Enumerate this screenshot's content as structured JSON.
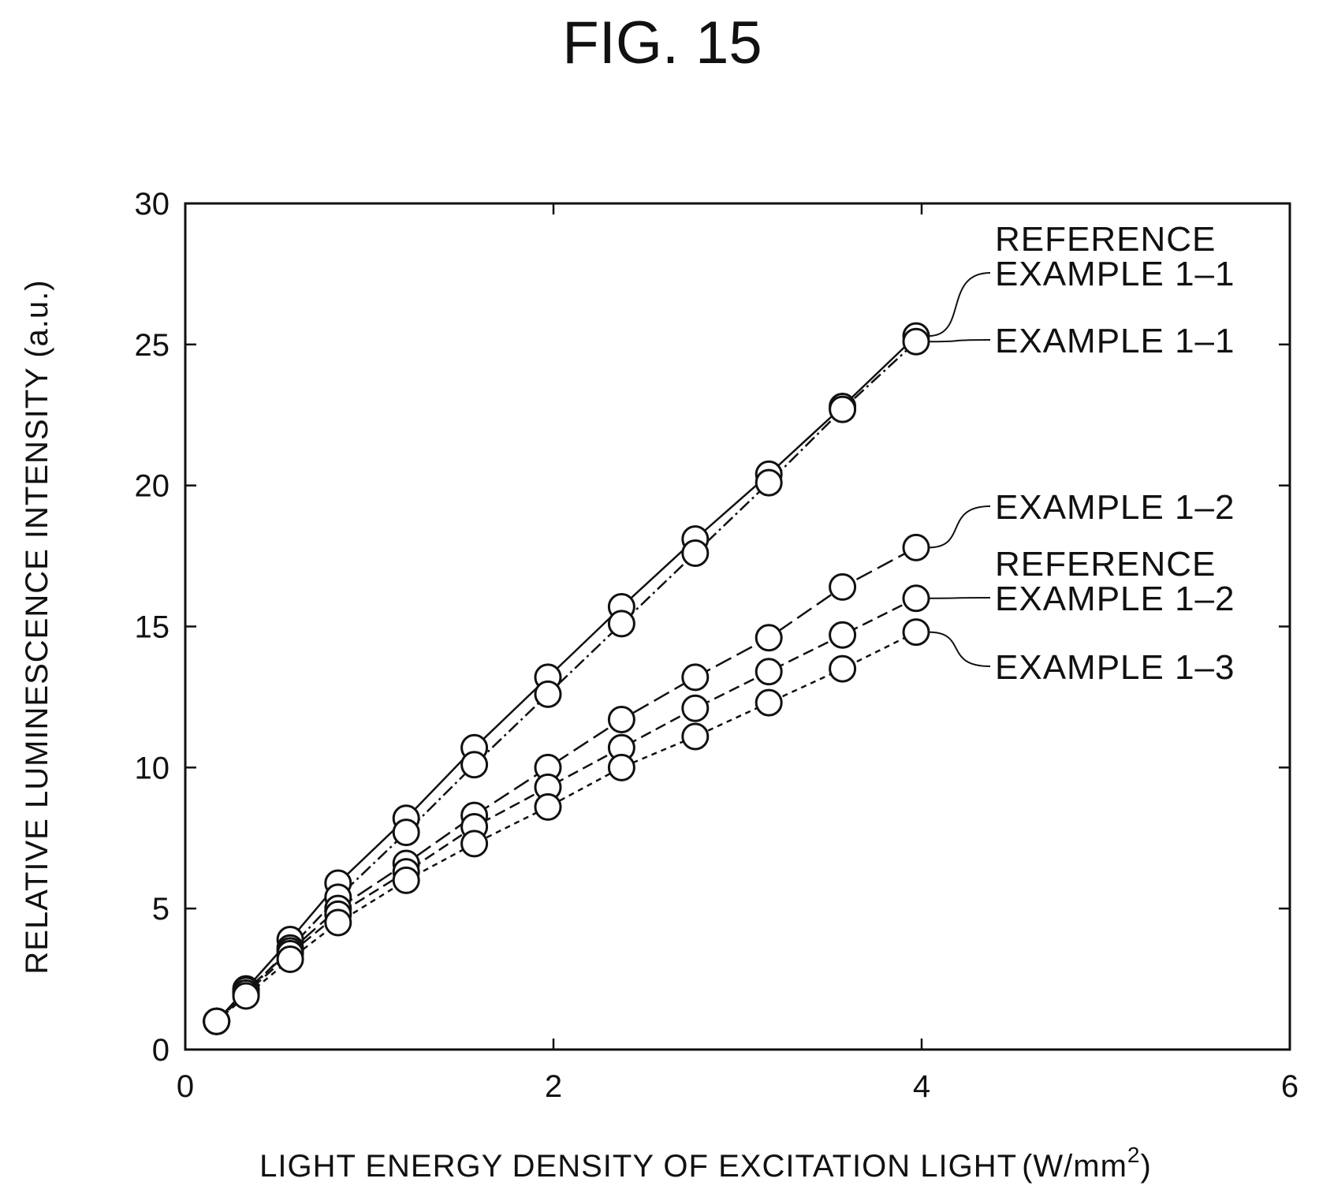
{
  "chart_data": {
    "type": "line",
    "title": "FIG. 15",
    "xlabel": "LIGHT ENERGY DENSITY OF EXCITATION LIGHT",
    "xlabel_unit": "(W/mm",
    "xlabel_unit_sup": "2",
    "xlabel_unit_end": ")",
    "ylabel": "RELATIVE LUMINESCENCE INTENSITY (a.u.)",
    "xlim": [
      0,
      6
    ],
    "ylim": [
      0,
      30
    ],
    "xticks": [
      "0",
      "2",
      "4",
      "6"
    ],
    "yticks": [
      "0",
      "5",
      "10",
      "15",
      "20",
      "25",
      "30"
    ],
    "grid": false,
    "legend_placement": "right, labels at line ends",
    "series": [
      {
        "name": "REFERENCE EXAMPLE 1-1",
        "label_lines": [
          "REFERENCE",
          "EXAMPLE 1–1"
        ],
        "dash": "",
        "x": [
          0.17,
          0.33,
          0.57,
          0.83,
          1.2,
          1.57,
          1.97,
          2.37,
          2.77,
          3.17,
          3.57,
          3.97
        ],
        "y": [
          1.0,
          2.15,
          3.9,
          5.9,
          8.2,
          10.7,
          13.2,
          15.7,
          18.1,
          20.4,
          22.8,
          25.3
        ]
      },
      {
        "name": "EXAMPLE 1-1",
        "label_lines": [
          "EXAMPLE 1–1"
        ],
        "dash": "16,5,3,5",
        "x": [
          0.17,
          0.33,
          0.57,
          0.83,
          1.2,
          1.57,
          1.97,
          2.37,
          2.77,
          3.17,
          3.57,
          3.97
        ],
        "y": [
          1.0,
          2.0,
          3.6,
          5.4,
          7.7,
          10.1,
          12.6,
          15.1,
          17.6,
          20.1,
          22.7,
          25.1
        ]
      },
      {
        "name": "EXAMPLE 1-2",
        "label_lines": [
          "EXAMPLE 1–2"
        ],
        "dash": "22,8",
        "x": [
          0.17,
          0.33,
          0.57,
          0.83,
          1.2,
          1.57,
          1.97,
          2.37,
          2.77,
          3.17,
          3.57,
          3.97
        ],
        "y": [
          1.0,
          2.1,
          3.5,
          5.0,
          6.6,
          8.3,
          10.0,
          11.7,
          13.2,
          14.6,
          16.4,
          17.8
        ]
      },
      {
        "name": "REFERENCE EXAMPLE 1-2",
        "label_lines": [
          "REFERENCE",
          "EXAMPLE 1–2"
        ],
        "dash": "14,7",
        "x": [
          0.17,
          0.33,
          0.57,
          0.83,
          1.2,
          1.57,
          1.97,
          2.37,
          2.77,
          3.17,
          3.57,
          3.97
        ],
        "y": [
          1.0,
          2.0,
          3.4,
          4.8,
          6.3,
          7.9,
          9.3,
          10.7,
          12.1,
          13.4,
          14.7,
          16.0
        ]
      },
      {
        "name": "EXAMPLE 1-3",
        "label_lines": [
          "EXAMPLE 1–3"
        ],
        "dash": "7,6",
        "x": [
          0.17,
          0.33,
          0.57,
          0.83,
          1.2,
          1.57,
          1.97,
          2.37,
          2.77,
          3.17,
          3.57,
          3.97
        ],
        "y": [
          1.0,
          1.9,
          3.2,
          4.5,
          6.0,
          7.3,
          8.6,
          10.0,
          11.1,
          12.3,
          13.5,
          14.8
        ]
      }
    ]
  }
}
